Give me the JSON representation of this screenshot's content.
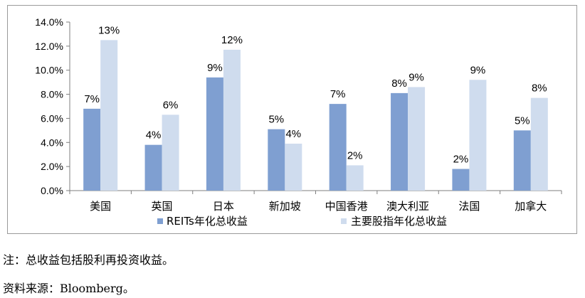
{
  "chart_data": {
    "type": "bar",
    "categories": [
      "美国",
      "英国",
      "日本",
      "新加坡",
      "中国香港",
      "澳大利亚",
      "法国",
      "加拿大"
    ],
    "series": [
      {
        "name": "REITs年化总收益",
        "color": "#7f9fd1",
        "values": [
          6.8,
          3.8,
          9.4,
          5.1,
          7.2,
          8.1,
          1.8,
          5.0
        ],
        "labels": [
          "7%",
          "4%",
          "9%",
          "5%",
          "7%",
          "8%",
          "2%",
          "5%"
        ]
      },
      {
        "name": "主要股指年化总收益",
        "color": "#cfdcee",
        "values": [
          12.5,
          6.3,
          11.7,
          3.9,
          2.1,
          8.6,
          9.2,
          7.7
        ],
        "labels": [
          "13%",
          "6%",
          "12%",
          "4%",
          "2%",
          "9%",
          "9%",
          "8%"
        ]
      }
    ],
    "yticks": [
      "0.0%",
      "2.0%",
      "4.0%",
      "6.0%",
      "8.0%",
      "10.0%",
      "12.0%",
      "14.0%"
    ],
    "ylim": [
      0,
      14
    ],
    "grid": false,
    "legend": "bottom",
    "title": "",
    "xlabel": "",
    "ylabel": ""
  },
  "notes": {
    "note": "注：总收益包括股利再投资收益。",
    "source": "资料来源：Bloomberg。"
  }
}
